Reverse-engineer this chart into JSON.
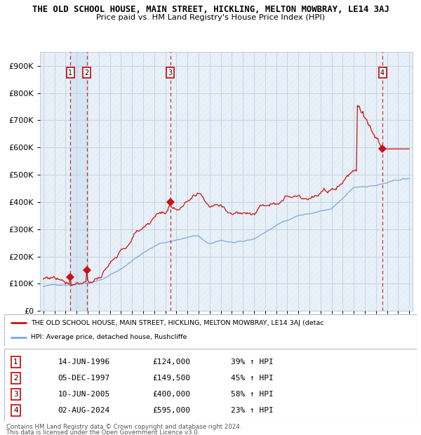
{
  "title": "THE OLD SCHOOL HOUSE, MAIN STREET, HICKLING, MELTON MOWBRAY, LE14 3AJ",
  "subtitle": "Price paid vs. HM Land Registry's House Price Index (HPI)",
  "hpi_color": "#7aaadd",
  "price_color": "#cc1111",
  "plot_bg_color": "#e8f0f8",
  "hatch_color": "#c8d8e8",
  "grid_color": "#c0cfe0",
  "shade_color": "#d0e2f2",
  "ylim": [
    0,
    950000
  ],
  "xlim_start": 1993.7,
  "xlim_end": 2027.3,
  "sales": [
    {
      "label": "1",
      "year": 1996.45,
      "price": 124000,
      "date_str": "14-JUN-1996",
      "pct": "39%",
      "dir": "↑"
    },
    {
      "label": "2",
      "year": 1997.92,
      "price": 149500,
      "date_str": "05-DEC-1997",
      "pct": "45%",
      "dir": "↑"
    },
    {
      "label": "3",
      "year": 2005.44,
      "price": 400000,
      "date_str": "10-JUN-2005",
      "pct": "58%",
      "dir": "↑"
    },
    {
      "label": "4",
      "year": 2024.58,
      "price": 595000,
      "date_str": "02-AUG-2024",
      "pct": "23%",
      "dir": "↑"
    }
  ],
  "legend_label_price": "THE OLD SCHOOL HOUSE, MAIN STREET, HICKLING, MELTON MOWBRAY, LE14 3AJ (detac",
  "legend_label_hpi": "HPI: Average price, detached house, Rushcliffe",
  "footer1": "Contains HM Land Registry data © Crown copyright and database right 2024.",
  "footer2": "This data is licensed under the Open Government Licence v3.0.",
  "yticks": [
    0,
    100000,
    200000,
    300000,
    400000,
    500000,
    600000,
    700000,
    800000,
    900000
  ],
  "ytick_labels": [
    "£0",
    "£100K",
    "£200K",
    "£300K",
    "£400K",
    "£500K",
    "£600K",
    "£700K",
    "£800K",
    "£900K"
  ]
}
